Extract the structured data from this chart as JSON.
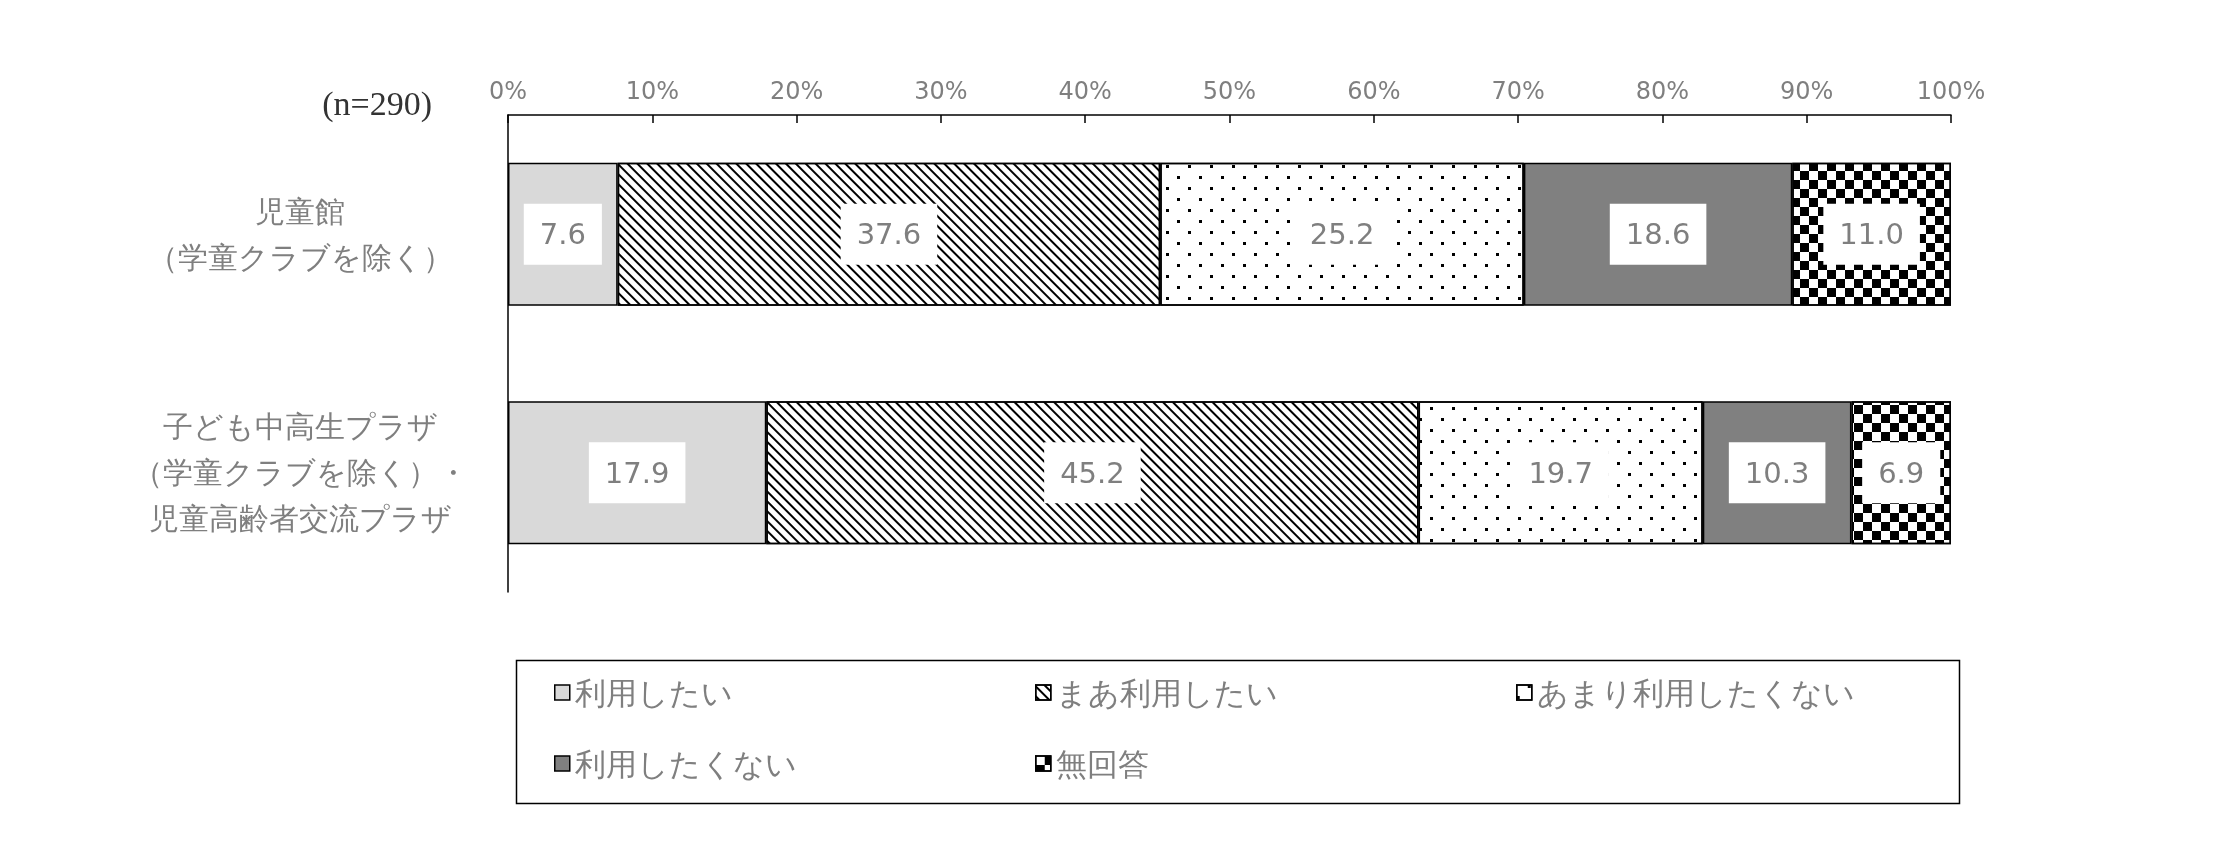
{
  "chart_data": {
    "type": "bar",
    "orientation": "horizontal",
    "stacked": true,
    "categories": [
      "児童館（学童クラブを除く）",
      "子ども中高生プラザ（学童クラブを除く）・児童高齢者交流プラザ"
    ],
    "series": [
      {
        "name": "利用したい",
        "color": "#d9d9d9",
        "values": [
          7.6,
          17.9
        ],
        "value_labels": [
          "7.6",
          "17.9"
        ]
      },
      {
        "name": "まあ利用したい",
        "color": "#000000",
        "values": [
          37.6,
          45.2
        ],
        "value_labels": [
          "37.6",
          "45.2"
        ]
      },
      {
        "name": "あまり利用したくない",
        "color": "#000000",
        "values": [
          25.2,
          19.7
        ],
        "value_labels": [
          "25.2",
          "19.7"
        ]
      },
      {
        "name": "利用したくない",
        "color": "#808080",
        "values": [
          18.6,
          10.3
        ],
        "value_labels": [
          "18.6",
          "10.3"
        ]
      },
      {
        "name": "無回答",
        "color": "#000000",
        "values": [
          11.0,
          6.9
        ],
        "value_labels": [
          "11.0",
          "6.9"
        ]
      }
    ],
    "xlim": [
      0,
      100
    ],
    "xticks": [
      {
        "value": 0,
        "label": "0%"
      },
      {
        "value": 10,
        "label": "10%"
      },
      {
        "value": 20,
        "label": "20%"
      },
      {
        "value": 30,
        "label": "30%"
      },
      {
        "value": 40,
        "label": "40%"
      },
      {
        "value": 50,
        "label": "50%"
      },
      {
        "value": 60,
        "label": "60%"
      },
      {
        "value": 70,
        "label": "70%"
      },
      {
        "value": 80,
        "label": "80%"
      },
      {
        "value": 90,
        "label": "90%"
      },
      {
        "value": 100,
        "label": "100%"
      }
    ],
    "annotations": [
      "(n=290)"
    ],
    "grid": false,
    "legend": "bottom"
  }
}
